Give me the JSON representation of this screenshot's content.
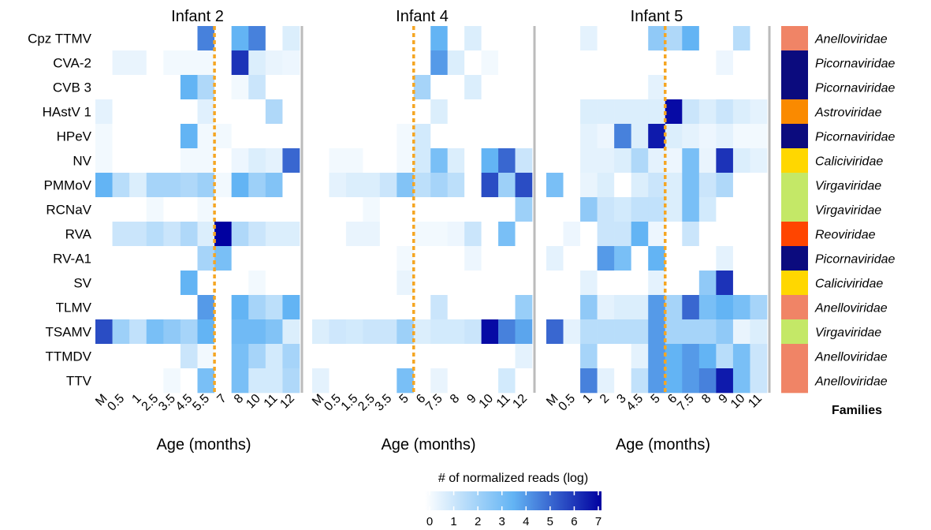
{
  "chart_data": {
    "type": "heatmap",
    "rows": [
      "Cpz TTMV",
      "CVA-2",
      "CVB 3",
      "HAstV 1",
      "HPeV",
      "NV",
      "PMMoV",
      "RCNaV",
      "RVA",
      "RV-A1",
      "SV",
      "TLMV",
      "TSAMV",
      "TTMDV",
      "TTV"
    ],
    "panels": [
      {
        "title": "Infant 2",
        "xlabel": "Age (months)",
        "x": [
          "M",
          "0.5",
          "1",
          "2.5",
          "3.5",
          "4.5",
          "5.5",
          "7",
          "8",
          "10",
          "11",
          "12"
        ],
        "divider_after": "5.5",
        "values": [
          [
            0,
            0,
            0,
            0,
            0,
            0,
            4.5,
            0,
            3.5,
            4.5,
            0,
            0.8
          ],
          [
            0,
            0.5,
            0.5,
            0,
            0.3,
            0.3,
            0.3,
            0,
            6,
            0.8,
            0.5,
            0.4
          ],
          [
            0,
            0,
            0,
            0,
            0,
            3.5,
            1.8,
            0,
            0.3,
            1.2,
            0,
            0
          ],
          [
            0.6,
            0,
            0,
            0,
            0,
            0,
            0.7,
            0,
            0,
            0,
            1.8,
            0
          ],
          [
            0.3,
            0,
            0,
            0,
            0,
            3.5,
            0.3,
            0.3,
            0,
            0,
            0,
            0
          ],
          [
            0.3,
            0,
            0,
            0,
            0,
            0.3,
            0.3,
            0,
            0.4,
            0.8,
            0.6,
            5
          ],
          [
            3.5,
            1.6,
            0.8,
            2,
            2,
            1.8,
            2.2,
            0.3,
            3.5,
            2.2,
            2.8,
            0
          ],
          [
            0,
            0,
            0,
            0.3,
            0,
            0,
            0.3,
            0,
            0,
            0,
            0,
            0
          ],
          [
            0,
            1.2,
            1.2,
            1.6,
            1.2,
            1.8,
            0.8,
            7,
            1.8,
            1.2,
            0.8,
            0.8
          ],
          [
            0,
            0,
            0,
            0,
            0,
            0,
            2,
            3,
            0,
            0,
            0,
            0
          ],
          [
            0,
            0,
            0,
            0,
            0,
            3.5,
            0,
            0,
            0,
            0.3,
            0,
            0
          ],
          [
            0,
            0,
            0,
            0,
            0,
            0,
            4,
            0,
            3.5,
            2,
            1.5,
            3.5
          ],
          [
            5.5,
            2.2,
            1.4,
            3,
            2.5,
            2,
            3.5,
            0,
            3.2,
            3.2,
            2.8,
            0.8
          ],
          [
            0,
            0,
            0,
            0,
            0,
            1.2,
            0.3,
            0,
            3,
            2,
            1,
            2
          ],
          [
            0,
            0,
            0,
            0,
            0.3,
            0,
            3,
            0,
            3,
            1,
            1,
            1.8
          ]
        ]
      },
      {
        "title": "Infant 4",
        "xlabel": "Age (months)",
        "x": [
          "M",
          "0.5",
          "1.5",
          "2.5",
          "3.5",
          "5",
          "6",
          "7.5",
          "8",
          "9",
          "10",
          "11",
          "12"
        ],
        "divider_after": "5",
        "values": [
          [
            0,
            0,
            0,
            0,
            0,
            0,
            0,
            3.5,
            0,
            0.8,
            0,
            0,
            0
          ],
          [
            0,
            0,
            0,
            0,
            0,
            0,
            0,
            4,
            0.8,
            0,
            0.3,
            0,
            0
          ],
          [
            0,
            0,
            0,
            0,
            0,
            0,
            2,
            0,
            0,
            0.8,
            0,
            0,
            0
          ],
          [
            0,
            0,
            0,
            0,
            0,
            0,
            0,
            0.8,
            0,
            0,
            0,
            0,
            0
          ],
          [
            0,
            0,
            0,
            0,
            0,
            0.3,
            1,
            0,
            0,
            0,
            0,
            0,
            0
          ],
          [
            0,
            0.3,
            0.3,
            0,
            0,
            0.3,
            1,
            3,
            0.8,
            0,
            3.5,
            5,
            1.2
          ],
          [
            0,
            0.6,
            0.8,
            0.8,
            1.2,
            2.8,
            1.5,
            2,
            1.5,
            0,
            5.5,
            2.2,
            5.5
          ],
          [
            0,
            0,
            0,
            0.3,
            0,
            0,
            0,
            0,
            0,
            0,
            0,
            0,
            2.2
          ],
          [
            0,
            0,
            0.5,
            0.5,
            0,
            0,
            0.3,
            0.3,
            0.4,
            1.2,
            0,
            3,
            0
          ],
          [
            0,
            0,
            0,
            0,
            0,
            0.3,
            0,
            0,
            0,
            0.4,
            0,
            0,
            0
          ],
          [
            0,
            0,
            0,
            0,
            0,
            0.5,
            0,
            0,
            0,
            0,
            0,
            0,
            0
          ],
          [
            0,
            0,
            0,
            0,
            0,
            0,
            0,
            1.2,
            0,
            0,
            0,
            0,
            2.3
          ],
          [
            0.8,
            1.1,
            1,
            1.2,
            1.2,
            2.2,
            0.8,
            1,
            1,
            1.2,
            6.8,
            4.5,
            3.8
          ],
          [
            0,
            0,
            0,
            0,
            0,
            0,
            0,
            0,
            0,
            0,
            0,
            0,
            0.6
          ],
          [
            0.6,
            0,
            0,
            0,
            0,
            3,
            0,
            0.5,
            0,
            0,
            0,
            1,
            0
          ]
        ]
      },
      {
        "title": "Infant 5",
        "xlabel": "Age (months)",
        "x": [
          "M",
          "0.5",
          "1",
          "2",
          "3",
          "4.5",
          "5",
          "6",
          "7.5",
          "8",
          "9",
          "10",
          "11"
        ],
        "divider_after": "5",
        "values": [
          [
            0,
            0,
            0.6,
            0,
            0,
            0,
            2.5,
            1.8,
            3.5,
            0,
            0,
            1.6,
            0
          ],
          [
            0,
            0,
            0,
            0,
            0,
            0,
            0,
            0,
            0,
            0,
            0.4,
            0,
            0
          ],
          [
            0,
            0,
            0,
            0,
            0,
            0,
            0.6,
            0,
            0,
            0,
            0,
            0,
            0
          ],
          [
            0,
            0,
            0.8,
            0.8,
            0.8,
            0.8,
            0.8,
            6.8,
            1.2,
            0.8,
            1.2,
            0.8,
            0.6
          ],
          [
            0,
            0,
            0.6,
            0.4,
            4.5,
            0.8,
            6.5,
            0.8,
            0.6,
            0.4,
            0.6,
            0.3,
            0.3
          ],
          [
            0,
            0,
            0.6,
            0.6,
            0.8,
            1.8,
            0.6,
            0.4,
            3,
            0.5,
            6,
            0.8,
            0.6
          ],
          [
            3,
            0,
            0.5,
            0.8,
            0,
            0.8,
            1.2,
            0.8,
            3,
            1.2,
            1.8,
            0,
            0
          ],
          [
            0,
            0,
            2.5,
            1.2,
            1,
            1.4,
            1.4,
            0.8,
            3,
            1,
            0,
            0,
            0
          ],
          [
            0,
            0.4,
            0,
            1.2,
            1.2,
            3.5,
            0.4,
            0,
            1.2,
            0,
            0,
            0,
            0
          ],
          [
            0.6,
            0,
            0,
            4,
            3,
            0,
            3.5,
            0,
            0,
            0,
            0.6,
            0,
            0
          ],
          [
            0,
            0,
            0.6,
            0,
            0,
            0,
            0.6,
            0,
            0,
            2.5,
            6,
            0,
            0
          ],
          [
            0,
            0,
            2.5,
            0.6,
            0.8,
            0.8,
            4,
            2,
            5,
            3,
            3.5,
            3,
            2
          ],
          [
            5,
            0.6,
            1.6,
            1.6,
            1.6,
            1.6,
            4,
            2,
            2,
            2,
            2.5,
            0.5,
            0.8
          ],
          [
            0,
            0,
            2,
            0,
            0,
            0.6,
            4,
            3.5,
            4,
            3.5,
            1.6,
            3,
            1.2
          ],
          [
            0,
            0,
            4.5,
            0.6,
            0,
            1.4,
            4,
            3.5,
            4,
            4.5,
            6.5,
            3,
            1.2
          ]
        ]
      }
    ],
    "families": {
      "title": "Families",
      "names": [
        "Anelloviridae",
        "Picornaviridae",
        "Picornaviridae",
        "Astroviridae",
        "Picornaviridae",
        "Caliciviridae",
        "Virgaviridae",
        "Virgaviridae",
        "Reoviridae",
        "Picornaviridae",
        "Caliciviridae",
        "Anelloviridae",
        "Virgaviridae",
        "Anelloviridae",
        "Anelloviridae"
      ],
      "colors": {
        "Anelloviridae": "#F08466",
        "Picornaviridae": "#0B0B7E",
        "Astroviridae": "#FA8A00",
        "Caliciviridae": "#FFD700",
        "Virgaviridae": "#C4E867",
        "Reoviridae": "#FF4500"
      }
    },
    "colorbar": {
      "title": "# of normalized reads (log)",
      "ticks": [
        0,
        1,
        2,
        3,
        4,
        5,
        6,
        7
      ],
      "range": [
        0,
        7
      ],
      "colors": [
        "#FFFFFF",
        "#63B4F4",
        "#0000A0"
      ]
    },
    "divider_color": "#F5A623",
    "panel_separator_color": "#BBBBBB"
  }
}
